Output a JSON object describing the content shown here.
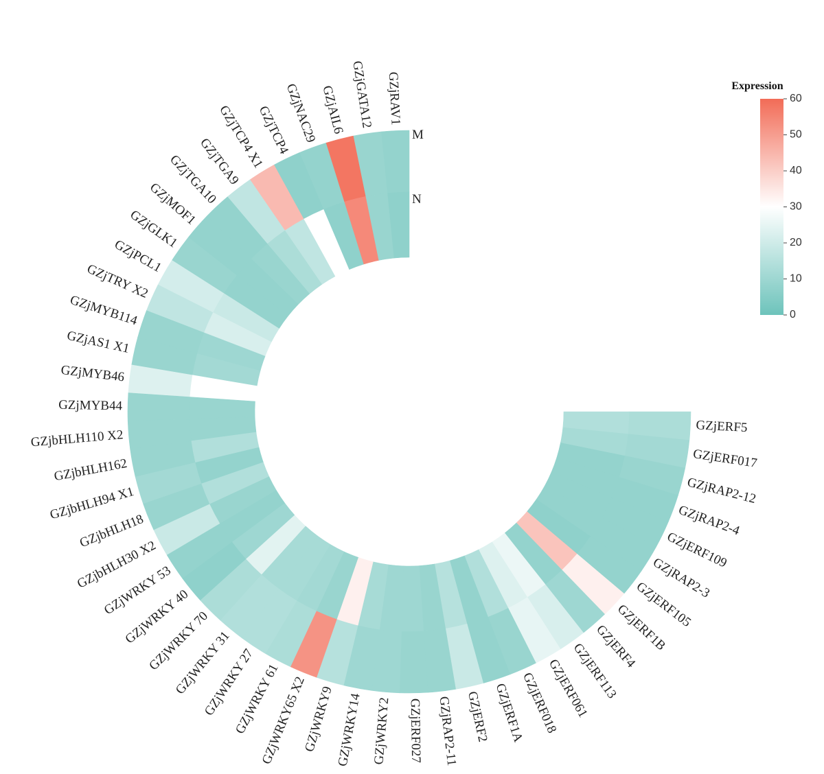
{
  "chart_data": {
    "type": "heatmap",
    "layout": "circular",
    "rows": [
      "M",
      "N"
    ],
    "legend": {
      "title": "Expression",
      "ticks": [
        60,
        50,
        40,
        30,
        20,
        10,
        0
      ],
      "range": [
        0,
        60
      ],
      "colors": {
        "low": "#6dc3bb",
        "mid": "#ffffff",
        "high": "#f26c57"
      },
      "mid_value": 30
    },
    "genes": [
      {
        "name": "GZjRAV1",
        "M": 8,
        "N": 7
      },
      {
        "name": "GZjGATA12",
        "M": 9,
        "N": 9
      },
      {
        "name": "GZjAIL6",
        "M": 58,
        "N": 54
      },
      {
        "name": "GZjNAC29",
        "M": 8,
        "N": 7
      },
      {
        "name": "GZjTCP4",
        "M": 7,
        "N": 30
      },
      {
        "name": "GZjTCP4 X1",
        "M": 44,
        "N": 17
      },
      {
        "name": "GZjTGA9",
        "M": 17,
        "N": 13
      },
      {
        "name": "GZjTGA10",
        "M": 8,
        "N": 9
      },
      {
        "name": "GZjMOF1",
        "M": 8,
        "N": 8
      },
      {
        "name": "GZjGLK1",
        "M": 9,
        "N": 8
      },
      {
        "name": "GZjPCL1",
        "M": 21,
        "N": 19
      },
      {
        "name": "GZjTRY X2",
        "M": 17,
        "N": 22
      },
      {
        "name": "GZjMYB114",
        "M": 9,
        "N": 10
      },
      {
        "name": "GZjAS1 X1",
        "M": 9,
        "N": 11
      },
      {
        "name": "GZjMYB46",
        "M": 23,
        "N": 30
      },
      {
        "name": "GZjMYB44",
        "M": 9,
        "N": 9
      },
      {
        "name": "GZjbHLH110 X2",
        "M": 9,
        "N": 9
      },
      {
        "name": "GZjbHLH162",
        "M": 9,
        "N": 14
      },
      {
        "name": "GZjbHLH94 X1",
        "M": 11,
        "N": 8
      },
      {
        "name": "GZjbHLH18",
        "M": 9,
        "N": 14
      },
      {
        "name": "GZjbHLH30 X2",
        "M": 19,
        "N": 9
      },
      {
        "name": "GZjWRKY 53",
        "M": 8,
        "N": 8
      },
      {
        "name": "GZjWRKY 40",
        "M": 7,
        "N": 10
      },
      {
        "name": "GZjWRKY 70",
        "M": 13,
        "N": 24
      },
      {
        "name": "GZjWRKY 31",
        "M": 14,
        "N": 12
      },
      {
        "name": "GZjWRKY 27",
        "M": 14,
        "N": 12
      },
      {
        "name": "GZjWRKY 61",
        "M": 13,
        "N": 11
      },
      {
        "name": "GZjWRKY65 X2",
        "M": 52,
        "N": 9
      },
      {
        "name": "GZjWRKY9",
        "M": 15,
        "N": 33
      },
      {
        "name": "GZjWRKY14",
        "M": 10,
        "N": 12
      },
      {
        "name": "GZjWRKY2",
        "M": 10,
        "N": 10
      },
      {
        "name": "GZjERF027",
        "M": 9,
        "N": 10
      },
      {
        "name": "GZjRAP2-11",
        "M": 9,
        "N": 9
      },
      {
        "name": "GZjERF2",
        "M": 19,
        "N": 15
      },
      {
        "name": "GZjERF1A",
        "M": 8,
        "N": 8
      },
      {
        "name": "GZjERF018",
        "M": 9,
        "N": 14
      },
      {
        "name": "GZjERF061",
        "M": 25,
        "N": 23
      },
      {
        "name": "GZjERF113",
        "M": 22,
        "N": 26
      },
      {
        "name": "GZjERF4",
        "M": 10,
        "N": 8
      },
      {
        "name": "GZjERF1B",
        "M": 33,
        "N": 42
      },
      {
        "name": "GZjERF105",
        "M": 8,
        "N": 7
      },
      {
        "name": "GZjRAP2-3",
        "M": 8,
        "N": 8
      },
      {
        "name": "GZjERF109",
        "M": 8,
        "N": 8
      },
      {
        "name": "GZjRAP2-4",
        "M": 8,
        "N": 8
      },
      {
        "name": "GZjRAP2-12",
        "M": 9,
        "N": 8
      },
      {
        "name": "GZjERF017",
        "M": 11,
        "N": 12
      },
      {
        "name": "GZjERF5",
        "M": 13,
        "N": 14
      }
    ]
  }
}
